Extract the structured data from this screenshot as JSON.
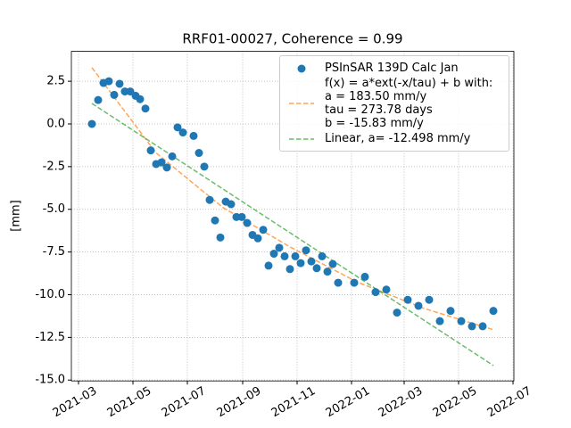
{
  "chart_data": {
    "type": "scatter",
    "title": "RRF01-00027, Coherence = 0.99",
    "ylabel": "[mm]",
    "xlim": [
      "2021-02-21",
      "2022-07-02"
    ],
    "xticks": [
      "2021-03",
      "2021-05",
      "2021-07",
      "2021-09",
      "2021-11",
      "2022-01",
      "2022-03",
      "2022-05",
      "2022-07"
    ],
    "ylim": [
      -15.05,
      4.25
    ],
    "yticks": [
      {
        "value": -15,
        "label": "-15.0"
      },
      -12.5,
      {
        "value": -10,
        "label": "-10.0"
      },
      -7.5,
      {
        "value": -5,
        "label": "-5.0"
      },
      -2.5,
      {
        "value": 0,
        "label": "0.0"
      },
      2.5
    ],
    "grid": true,
    "legend": "upper right",
    "series": [
      {
        "name": "PSInSAR 139D Calc Jan",
        "kind": "scatter",
        "color": "#1f77b4",
        "x": [
          "2021-03-16",
          "2021-03-23",
          "2021-03-29",
          "2021-04-04",
          "2021-04-10",
          "2021-04-16",
          "2021-04-22",
          "2021-04-28",
          "2021-05-04",
          "2021-05-09",
          "2021-05-15",
          "2021-05-21",
          "2021-05-27",
          "2021-06-02",
          "2021-06-08",
          "2021-06-14",
          "2021-06-20",
          "2021-06-26",
          "2021-07-08",
          "2021-07-14",
          "2021-07-20",
          "2021-07-26",
          "2021-08-01",
          "2021-08-07",
          "2021-08-13",
          "2021-08-19",
          "2021-08-25",
          "2021-08-31",
          "2021-09-06",
          "2021-09-12",
          "2021-09-18",
          "2021-09-24",
          "2021-09-30",
          "2021-10-06",
          "2021-10-12",
          "2021-10-18",
          "2021-10-24",
          "2021-10-30",
          "2021-11-05",
          "2021-11-11",
          "2021-11-17",
          "2021-11-23",
          "2021-11-29",
          "2021-12-05",
          "2021-12-11",
          "2021-12-17",
          "2022-01-04",
          "2022-01-16",
          "2022-01-28",
          "2022-02-09",
          "2022-02-21",
          "2022-03-05",
          "2022-03-17",
          "2022-03-29",
          "2022-04-10",
          "2022-04-22",
          "2022-05-04",
          "2022-05-16",
          "2022-05-28",
          "2022-06-09"
        ],
        "values": [
          0.0,
          1.4,
          2.4,
          2.5,
          1.7,
          2.35,
          1.9,
          1.9,
          1.65,
          1.45,
          0.9,
          -1.55,
          -2.35,
          -2.25,
          -2.55,
          -1.9,
          -0.2,
          -0.5,
          -0.7,
          -1.7,
          -2.5,
          -4.45,
          -5.65,
          -6.65,
          -4.55,
          -4.7,
          -5.45,
          -5.45,
          -5.8,
          -6.5,
          -6.7,
          -6.2,
          -8.3,
          -7.6,
          -7.25,
          -7.75,
          -8.5,
          -7.75,
          -8.15,
          -7.4,
          -8.05,
          -8.45,
          -7.75,
          -8.65,
          -8.2,
          -9.3,
          -9.3,
          -8.95,
          -9.85,
          -9.7,
          -11.05,
          -10.3,
          -10.65,
          -10.3,
          -11.55,
          -10.95,
          -11.55,
          -11.85,
          -11.85,
          -10.95
        ]
      },
      {
        "name": "f(x) = a*ext(-x/tau) + b with:\na  = 183.50 mm/y\ntau = 273.78 days\nb = -15.83 mm/y",
        "kind": "dashed",
        "color": "#ff7f0e",
        "x": [
          "2021-03-16",
          "2021-05-27",
          "2021-08-10",
          "2021-10-24",
          "2022-01-07",
          "2022-03-23",
          "2022-06-09"
        ],
        "values": [
          3.3,
          -1.7,
          -4.9,
          -7.2,
          -9.25,
          -10.8,
          -12.05
        ]
      },
      {
        "name": "Linear, a= -12.498 mm/y",
        "kind": "dashed",
        "color": "#2ca02c",
        "x": [
          "2021-03-16",
          "2022-06-09"
        ],
        "values": [
          1.2,
          -14.15
        ]
      }
    ]
  }
}
